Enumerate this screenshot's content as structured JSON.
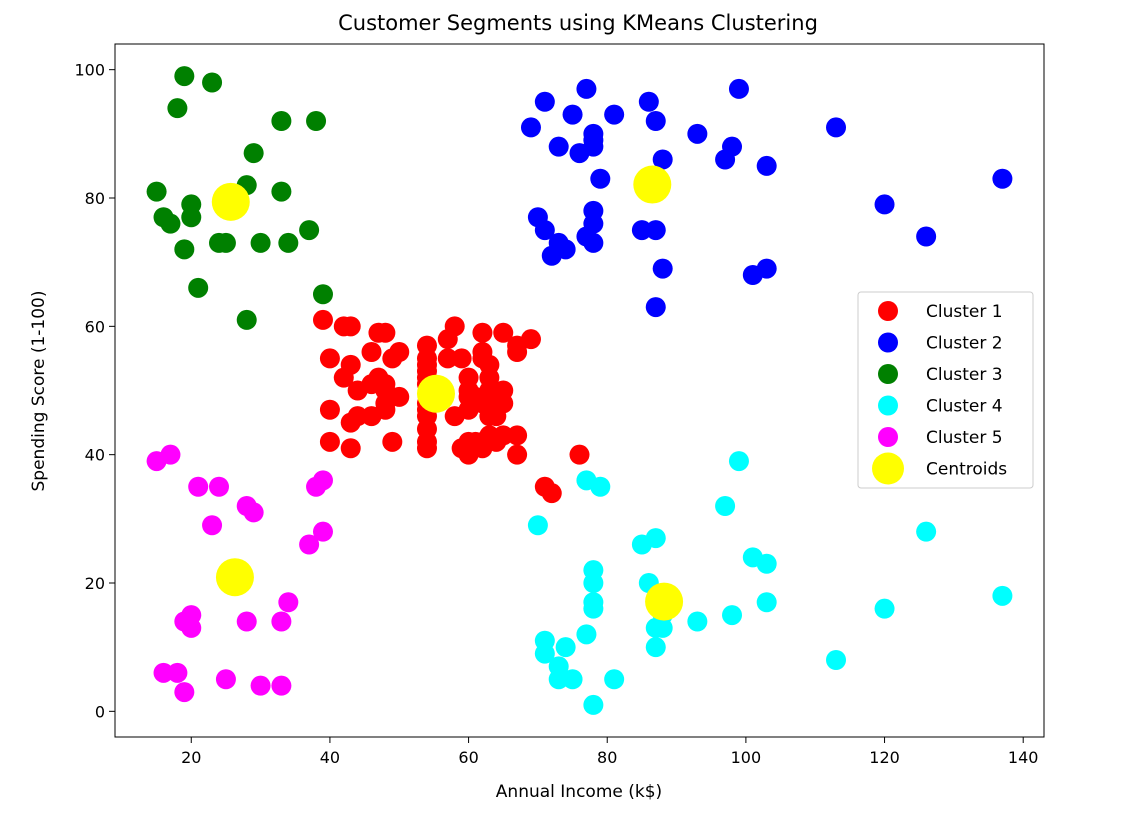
{
  "chart_data": {
    "type": "scatter",
    "title": "Customer Segments using KMeans Clustering",
    "xlabel": "Annual Income (k$)",
    "ylabel": "Spending Score (1-100)",
    "xlim": [
      9,
      143
    ],
    "ylim": [
      -4,
      104
    ],
    "xticks": [
      20,
      40,
      60,
      80,
      100,
      120,
      140
    ],
    "yticks": [
      0,
      20,
      40,
      60,
      80,
      100
    ],
    "grid": false,
    "legend_position": "center-right",
    "series": [
      {
        "name": "Cluster 1",
        "color": "#ff0000",
        "points": [
          [
            39,
            61
          ],
          [
            40,
            55
          ],
          [
            40,
            47
          ],
          [
            40,
            42
          ],
          [
            42,
            52
          ],
          [
            42,
            60
          ],
          [
            43,
            60
          ],
          [
            43,
            54
          ],
          [
            43,
            45
          ],
          [
            43,
            41
          ],
          [
            44,
            50
          ],
          [
            44,
            46
          ],
          [
            46,
            51
          ],
          [
            46,
            46
          ],
          [
            46,
            56
          ],
          [
            47,
            52
          ],
          [
            47,
            59
          ],
          [
            48,
            51
          ],
          [
            48,
            59
          ],
          [
            48,
            50
          ],
          [
            48,
            48
          ],
          [
            48,
            47
          ],
          [
            49,
            55
          ],
          [
            49,
            42
          ],
          [
            50,
            49
          ],
          [
            50,
            56
          ],
          [
            54,
            47
          ],
          [
            54,
            54
          ],
          [
            54,
            53
          ],
          [
            54,
            48
          ],
          [
            54,
            52
          ],
          [
            54,
            42
          ],
          [
            54,
            51
          ],
          [
            54,
            55
          ],
          [
            54,
            41
          ],
          [
            54,
            44
          ],
          [
            54,
            57
          ],
          [
            54,
            46
          ],
          [
            57,
            58
          ],
          [
            57,
            55
          ],
          [
            58,
            60
          ],
          [
            58,
            46
          ],
          [
            59,
            55
          ],
          [
            59,
            41
          ],
          [
            60,
            49
          ],
          [
            60,
            40
          ],
          [
            60,
            42
          ],
          [
            60,
            52
          ],
          [
            60,
            47
          ],
          [
            60,
            50
          ],
          [
            61,
            42
          ],
          [
            61,
            49
          ],
          [
            62,
            41
          ],
          [
            62,
            48
          ],
          [
            62,
            59
          ],
          [
            62,
            55
          ],
          [
            62,
            56
          ],
          [
            62,
            42
          ],
          [
            63,
            50
          ],
          [
            63,
            46
          ],
          [
            63,
            43
          ],
          [
            63,
            48
          ],
          [
            63,
            52
          ],
          [
            63,
            54
          ],
          [
            64,
            42
          ],
          [
            64,
            46
          ],
          [
            65,
            48
          ],
          [
            65,
            50
          ],
          [
            65,
            43
          ],
          [
            65,
            59
          ],
          [
            67,
            43
          ],
          [
            67,
            57
          ],
          [
            67,
            56
          ],
          [
            67,
            40
          ],
          [
            69,
            58
          ],
          [
            71,
            35
          ],
          [
            72,
            34
          ],
          [
            76,
            40
          ]
        ]
      },
      {
        "name": "Cluster 2",
        "color": "#0000ff",
        "points": [
          [
            69,
            91
          ],
          [
            70,
            77
          ],
          [
            71,
            95
          ],
          [
            71,
            75
          ],
          [
            72,
            71
          ],
          [
            73,
            88
          ],
          [
            73,
            73
          ],
          [
            74,
            72
          ],
          [
            75,
            93
          ],
          [
            76,
            87
          ],
          [
            77,
            97
          ],
          [
            77,
            74
          ],
          [
            78,
            90
          ],
          [
            78,
            88
          ],
          [
            78,
            76
          ],
          [
            78,
            89
          ],
          [
            78,
            78
          ],
          [
            78,
            73
          ],
          [
            79,
            83
          ],
          [
            81,
            93
          ],
          [
            85,
            75
          ],
          [
            86,
            95
          ],
          [
            87,
            63
          ],
          [
            87,
            75
          ],
          [
            87,
            92
          ],
          [
            88,
            86
          ],
          [
            88,
            69
          ],
          [
            93,
            90
          ],
          [
            97,
            86
          ],
          [
            98,
            88
          ],
          [
            99,
            97
          ],
          [
            101,
            68
          ],
          [
            103,
            85
          ],
          [
            103,
            69
          ],
          [
            113,
            91
          ],
          [
            120,
            79
          ],
          [
            126,
            74
          ],
          [
            137,
            83
          ]
        ]
      },
      {
        "name": "Cluster 3",
        "color": "#008000",
        "points": [
          [
            15,
            81
          ],
          [
            16,
            77
          ],
          [
            17,
            76
          ],
          [
            18,
            94
          ],
          [
            19,
            72
          ],
          [
            19,
            99
          ],
          [
            20,
            77
          ],
          [
            20,
            79
          ],
          [
            21,
            66
          ],
          [
            23,
            98
          ],
          [
            24,
            73
          ],
          [
            25,
            73
          ],
          [
            28,
            82
          ],
          [
            28,
            61
          ],
          [
            29,
            87
          ],
          [
            30,
            73
          ],
          [
            33,
            92
          ],
          [
            33,
            81
          ],
          [
            34,
            73
          ],
          [
            37,
            75
          ],
          [
            38,
            92
          ],
          [
            39,
            65
          ]
        ]
      },
      {
        "name": "Cluster 4",
        "color": "#00ffff",
        "points": [
          [
            70,
            29
          ],
          [
            71,
            11
          ],
          [
            71,
            9
          ],
          [
            73,
            5
          ],
          [
            73,
            7
          ],
          [
            74,
            10
          ],
          [
            75,
            5
          ],
          [
            77,
            12
          ],
          [
            77,
            36
          ],
          [
            78,
            22
          ],
          [
            78,
            17
          ],
          [
            78,
            20
          ],
          [
            78,
            16
          ],
          [
            78,
            1
          ],
          [
            79,
            35
          ],
          [
            81,
            5
          ],
          [
            85,
            26
          ],
          [
            86,
            20
          ],
          [
            87,
            27
          ],
          [
            87,
            13
          ],
          [
            87,
            10
          ],
          [
            88,
            13
          ],
          [
            88,
            15
          ],
          [
            93,
            14
          ],
          [
            97,
            32
          ],
          [
            98,
            15
          ],
          [
            99,
            39
          ],
          [
            101,
            24
          ],
          [
            103,
            23
          ],
          [
            103,
            17
          ],
          [
            113,
            8
          ],
          [
            120,
            16
          ],
          [
            126,
            28
          ],
          [
            137,
            18
          ]
        ]
      },
      {
        "name": "Cluster 5",
        "color": "#ff00ff",
        "points": [
          [
            15,
            39
          ],
          [
            16,
            6
          ],
          [
            17,
            40
          ],
          [
            18,
            6
          ],
          [
            19,
            3
          ],
          [
            19,
            14
          ],
          [
            20,
            15
          ],
          [
            20,
            13
          ],
          [
            21,
            35
          ],
          [
            23,
            29
          ],
          [
            24,
            35
          ],
          [
            25,
            5
          ],
          [
            28,
            14
          ],
          [
            28,
            32
          ],
          [
            29,
            31
          ],
          [
            30,
            4
          ],
          [
            33,
            4
          ],
          [
            33,
            14
          ],
          [
            34,
            17
          ],
          [
            37,
            26
          ],
          [
            38,
            35
          ],
          [
            39,
            36
          ],
          [
            39,
            28
          ]
        ]
      }
    ],
    "centroids": {
      "name": "Centroids",
      "color": "#ffff00",
      "points": [
        [
          55.3,
          49.5
        ],
        [
          86.5,
          82.1
        ],
        [
          25.7,
          79.4
        ],
        [
          88.2,
          17.1
        ],
        [
          26.3,
          20.9
        ]
      ]
    }
  }
}
